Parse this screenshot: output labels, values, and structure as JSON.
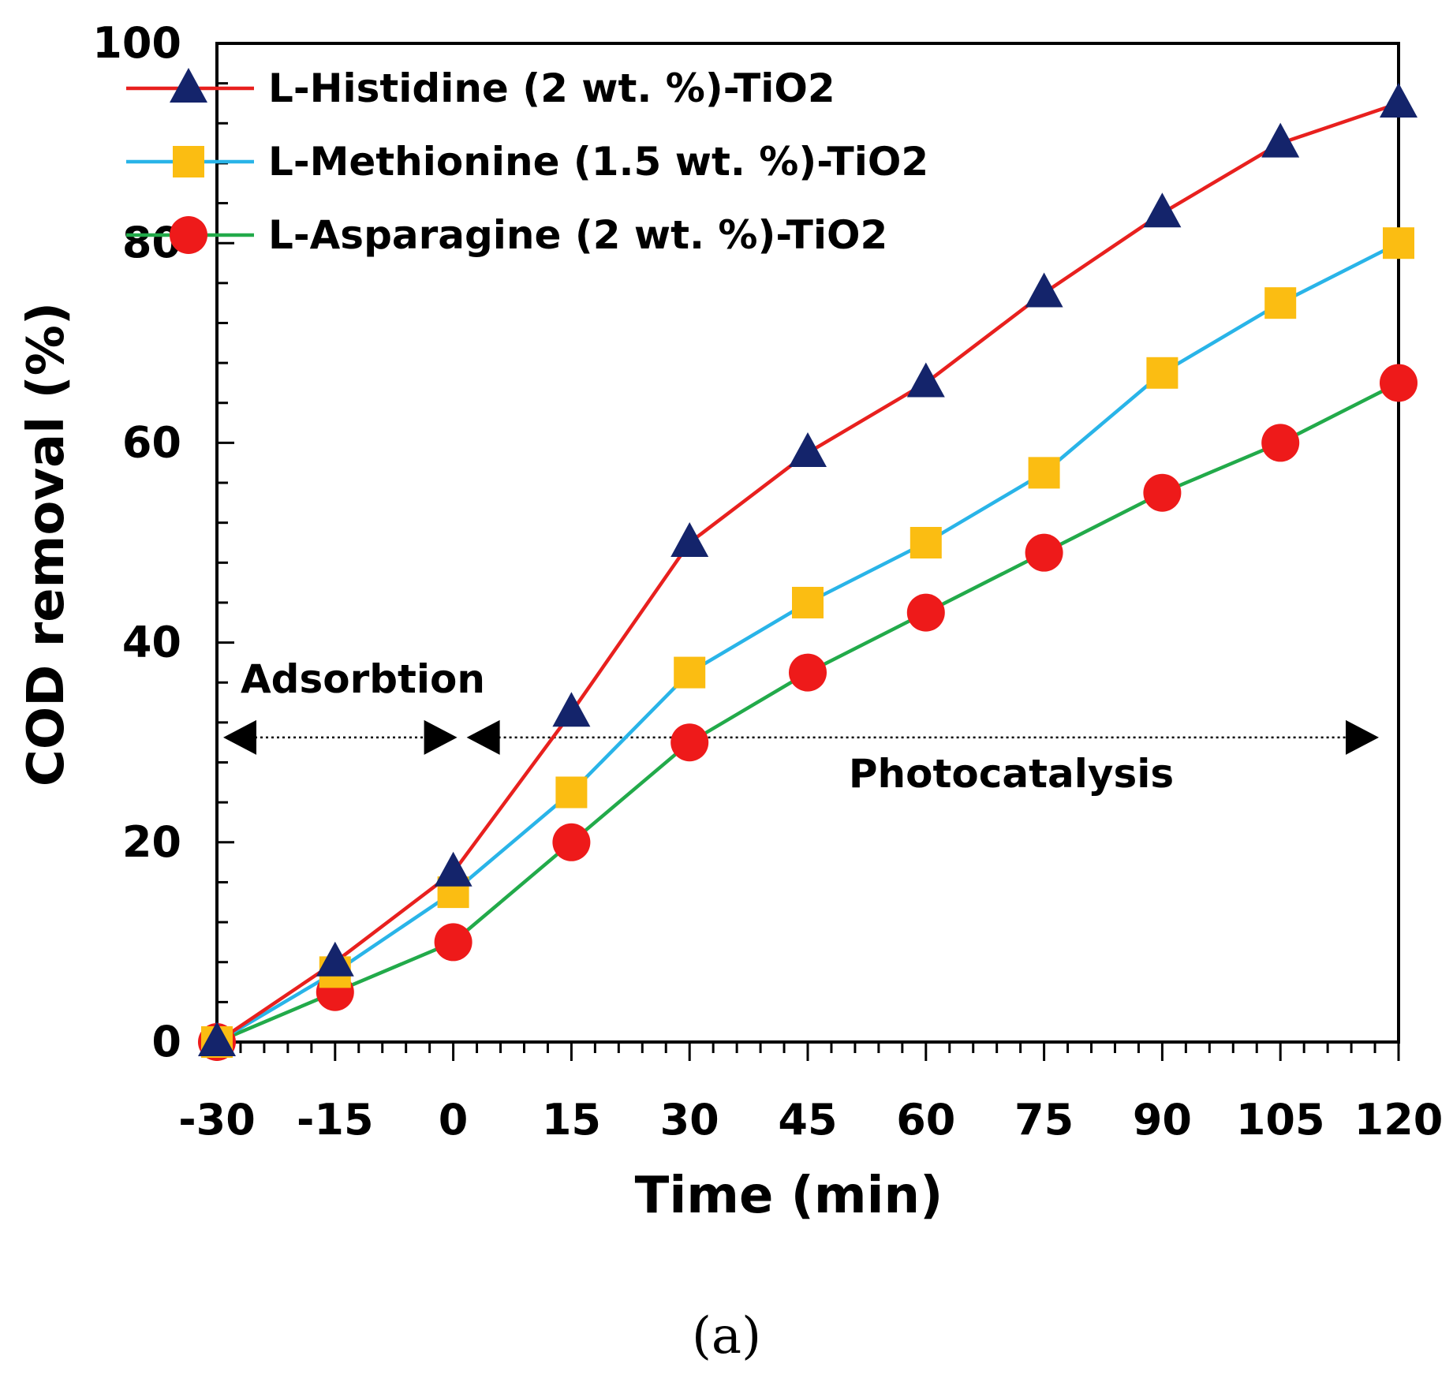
{
  "chart_data": {
    "type": "line",
    "title": "",
    "xlabel": "Time (min)",
    "ylabel": "COD removal (%)",
    "x": [
      -30,
      -15,
      0,
      15,
      30,
      45,
      60,
      75,
      90,
      105,
      120
    ],
    "x_ticks": [
      "-30",
      "-15",
      "0",
      "15",
      "30",
      "45",
      "60",
      "75",
      "90",
      "105",
      "120"
    ],
    "y_ticks": [
      "0",
      "20",
      "40",
      "60",
      "80",
      "100"
    ],
    "xlim": [
      -30,
      120
    ],
    "ylim": [
      0,
      100
    ],
    "legend_position": "top-left",
    "series": [
      {
        "name": "L-Histidine (2 wt. %)-TiO2",
        "line_color": "#e8201e",
        "marker": "triangle",
        "marker_color": "#14246b",
        "values": [
          0,
          8,
          17,
          33,
          50,
          59,
          66,
          75,
          83,
          90,
          94
        ]
      },
      {
        "name": "L-Methionine (1.5 wt. %)-TiO2",
        "line_color": "#29b4e8",
        "marker": "square",
        "marker_color": "#fbbd12",
        "values": [
          0,
          7,
          15,
          25,
          37,
          44,
          50,
          57,
          67,
          74,
          80
        ]
      },
      {
        "name": "L-Asparagine (2 wt. %)-TiO2",
        "line_color": "#22aa4a",
        "marker": "circle",
        "marker_color": "#ee1a1a",
        "values": [
          0,
          5,
          10,
          20,
          30,
          37,
          43,
          49,
          55,
          60,
          66
        ]
      }
    ],
    "annotations": [
      {
        "text": "Adsorbtion",
        "x_start": -30,
        "x_end": 0,
        "y": 30.5
      },
      {
        "text": "Photocatalysis",
        "x_start": 0,
        "x_end": 120,
        "y": 30.5
      }
    ]
  },
  "caption": "(a)"
}
